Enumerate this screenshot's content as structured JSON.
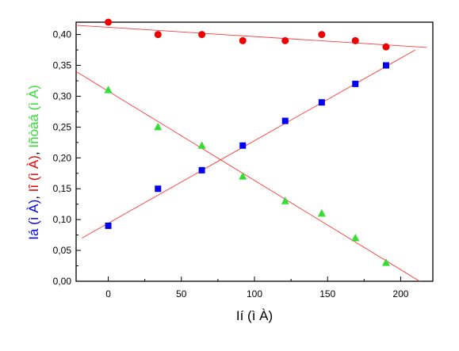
{
  "chart_data": {
    "type": "scatter",
    "xlabel": "Ií  (ì À)",
    "ylabel_parts": [
      {
        "text": "Iá (ì À)",
        "color": "#0000ee"
      },
      {
        "text": ", ",
        "color": "#000000"
      },
      {
        "text": "Iî  (ì À)",
        "color": "#ee0000"
      },
      {
        "text": ", ",
        "color": "#000000"
      },
      {
        "text": "Iñòàá (ì À)",
        "color": "#33dd33"
      }
    ],
    "xlim": [
      -22,
      222
    ],
    "ylim": [
      0.0,
      0.42
    ],
    "x_ticks": [
      0,
      50,
      100,
      150,
      200
    ],
    "y_ticks": [
      "0,00",
      "0,05",
      "0,10",
      "0,15",
      "0,20",
      "0,25",
      "0,30",
      "0,35",
      "0,40"
    ],
    "y_tick_values": [
      0.0,
      0.05,
      0.1,
      0.15,
      0.2,
      0.25,
      0.3,
      0.35,
      0.4
    ],
    "series": [
      {
        "marker": "circle",
        "color": "#ee0000",
        "x": [
          0,
          34,
          64,
          92,
          121,
          146,
          169,
          190
        ],
        "y": [
          0.42,
          0.4,
          0.4,
          0.39,
          0.39,
          0.4,
          0.39,
          0.38
        ],
        "fit": {
          "x0": -22,
          "y0": 0.415,
          "x1": 218,
          "y1": 0.379
        }
      },
      {
        "marker": "square",
        "color": "#0000ee",
        "x": [
          0,
          34,
          64,
          92,
          121,
          146,
          169,
          190
        ],
        "y": [
          0.09,
          0.15,
          0.18,
          0.22,
          0.26,
          0.29,
          0.32,
          0.35
        ],
        "fit": {
          "x0": -18,
          "y0": 0.07,
          "x1": 210,
          "y1": 0.375
        }
      },
      {
        "marker": "triangle",
        "color": "#33dd33",
        "x": [
          0,
          34,
          64,
          92,
          121,
          146,
          169,
          190
        ],
        "y": [
          0.31,
          0.25,
          0.22,
          0.17,
          0.13,
          0.11,
          0.07,
          0.03
        ],
        "fit": {
          "x0": -22,
          "y0": 0.34,
          "x1": 213,
          "y1": 0.0
        }
      }
    ]
  }
}
